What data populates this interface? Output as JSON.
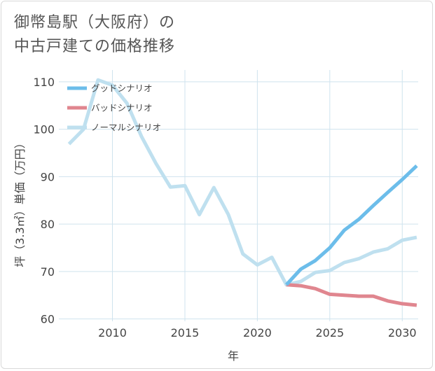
{
  "title": {
    "line1": "御幣島駅（大阪府）の",
    "line2": "中古戸建ての価格推移"
  },
  "chart_data": {
    "type": "line",
    "xlabel": "年",
    "ylabel": "坪（3.3㎡）単価（万円）",
    "xlim": [
      2006.3,
      2031.1
    ],
    "ylim": [
      59.5,
      112.5
    ],
    "xticks": [
      2010,
      2015,
      2020,
      2025,
      2030
    ],
    "yticks": [
      60,
      70,
      80,
      90,
      100,
      110
    ],
    "grid": true,
    "legend_position": "top-left",
    "series": [
      {
        "name": "グッドシナリオ",
        "color": "#6cbdea",
        "x": [
          2022,
          2023,
          2024,
          2025,
          2026,
          2027,
          2028,
          2029,
          2030,
          2031
        ],
        "values": [
          67.2,
          70.5,
          72.3,
          75.0,
          78.7,
          81.0,
          83.9,
          86.7,
          89.4,
          92.3
        ]
      },
      {
        "name": "バッドシナリオ",
        "color": "#e0868f",
        "x": [
          2022,
          2023,
          2024,
          2025,
          2026,
          2027,
          2028,
          2029,
          2030,
          2031
        ],
        "values": [
          67.2,
          67.0,
          66.4,
          65.2,
          65.0,
          64.8,
          64.8,
          63.8,
          63.2,
          62.9
        ]
      },
      {
        "name": "ノーマルシナリオ",
        "color": "#bfe0ef",
        "x": [
          2007,
          2008,
          2009,
          2010,
          2011,
          2012,
          2013,
          2014,
          2015,
          2016,
          2017,
          2018,
          2019,
          2020,
          2021,
          2022,
          2023,
          2024,
          2025,
          2026,
          2027,
          2028,
          2029,
          2030,
          2031
        ],
        "values": [
          96.9,
          100.0,
          110.4,
          109.3,
          105.5,
          98.5,
          92.8,
          87.8,
          88.1,
          82.0,
          87.7,
          82.0,
          73.7,
          71.4,
          73.0,
          67.2,
          67.9,
          69.8,
          70.2,
          71.9,
          72.7,
          74.1,
          74.8,
          76.6,
          77.2
        ]
      }
    ]
  }
}
